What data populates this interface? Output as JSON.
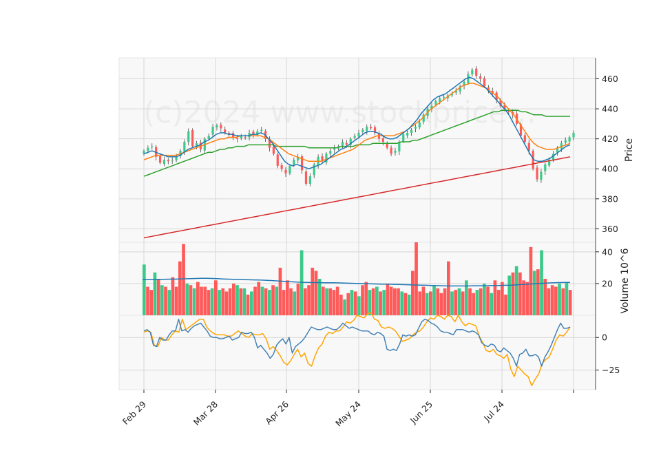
{
  "chart_data": {
    "type": "candlestick",
    "watermark": "(c)2024 www.stockprice...",
    "x_tick_labels": [
      "Feb 29",
      "Mar 28",
      "Apr 26",
      "May 24",
      "Jun 25",
      "Jul 24"
    ],
    "price_panel": {
      "ylabel": "Price",
      "yticks": [
        360,
        380,
        400,
        420,
        440,
        460
      ],
      "ylim": [
        351,
        474
      ],
      "ma_colors": {
        "ma_short": "#1f77b4",
        "ma_mid": "#ff7f0e",
        "ma_long": "#2ca02c",
        "ma_200": "#d62728"
      },
      "up_color": "#3cc98a",
      "down_color": "#ff5a5a",
      "candles_close": [
        412,
        414,
        415,
        408,
        404,
        406,
        405,
        406,
        408,
        412,
        418,
        425,
        415,
        417,
        413,
        420,
        422,
        428,
        429,
        427,
        424,
        423,
        421,
        420,
        422,
        421,
        424,
        423,
        425,
        426,
        420,
        414,
        410,
        402,
        400,
        397,
        402,
        406,
        408,
        399,
        390,
        395,
        403,
        408,
        405,
        410,
        412,
        414,
        415,
        418,
        416,
        420,
        422,
        424,
        426,
        428,
        427,
        424,
        420,
        418,
        414,
        410,
        412,
        418,
        423,
        424,
        426,
        428,
        431,
        436,
        440,
        442,
        445,
        447,
        448,
        449,
        450,
        452,
        455,
        458,
        463,
        466,
        462,
        460,
        455,
        452,
        450,
        446,
        442,
        440,
        438,
        436,
        430,
        422,
        418,
        412,
        400,
        393,
        398,
        403,
        406,
        410,
        414,
        417,
        419,
        421,
        424
      ],
      "ma_short": [
        410,
        411,
        412,
        411,
        410,
        409,
        408,
        408,
        408,
        409,
        411,
        413,
        414,
        415,
        416,
        418,
        419,
        421,
        423,
        424,
        424,
        423,
        423,
        422,
        422,
        422,
        422,
        423,
        423,
        424,
        423,
        420,
        417,
        413,
        409,
        405,
        403,
        402,
        403,
        402,
        401,
        400,
        401,
        402,
        403,
        405,
        407,
        409,
        411,
        413,
        414,
        416,
        418,
        420,
        422,
        424,
        425,
        425,
        424,
        423,
        421,
        420,
        420,
        421,
        423,
        425,
        427,
        430,
        433,
        437,
        440,
        443,
        446,
        448,
        449,
        450,
        452,
        454,
        456,
        458,
        460,
        461,
        460,
        458,
        456,
        454,
        451,
        448,
        445,
        442,
        439,
        435,
        430,
        425,
        420,
        415,
        410,
        406,
        405,
        405,
        406,
        407,
        409,
        411,
        413,
        415,
        416
      ],
      "ma_mid": [
        406,
        407,
        408,
        409,
        409,
        409,
        409,
        409,
        409,
        410,
        411,
        412,
        413,
        414,
        415,
        416,
        417,
        418,
        419,
        420,
        420,
        421,
        421,
        421,
        422,
        422,
        422,
        422,
        422,
        422,
        421,
        420,
        418,
        416,
        414,
        412,
        410,
        409,
        408,
        407,
        406,
        405,
        405,
        405,
        405,
        406,
        407,
        408,
        409,
        410,
        411,
        412,
        413,
        415,
        417,
        419,
        420,
        421,
        422,
        422,
        422,
        422,
        422,
        423,
        424,
        425,
        427,
        429,
        431,
        433,
        436,
        439,
        441,
        443,
        445,
        447,
        449,
        451,
        453,
        455,
        456,
        457,
        457,
        456,
        455,
        454,
        452,
        450,
        448,
        445,
        442,
        439,
        436,
        432,
        428,
        424,
        420,
        417,
        415,
        414,
        413,
        413,
        413,
        414,
        415,
        416,
        417
      ],
      "ma_long": [
        395,
        396,
        397,
        398,
        399,
        400,
        401,
        402,
        403,
        404,
        405,
        406,
        407,
        408,
        409,
        410,
        411,
        411,
        412,
        413,
        413,
        414,
        414,
        415,
        415,
        415,
        416,
        416,
        416,
        416,
        416,
        416,
        416,
        415,
        415,
        415,
        415,
        415,
        415,
        415,
        415,
        414,
        414,
        414,
        414,
        414,
        414,
        414,
        414,
        415,
        415,
        415,
        415,
        416,
        416,
        416,
        416,
        417,
        417,
        417,
        417,
        417,
        417,
        417,
        418,
        418,
        418,
        419,
        419,
        420,
        421,
        422,
        423,
        424,
        425,
        426,
        427,
        428,
        429,
        430,
        431,
        432,
        433,
        434,
        435,
        436,
        437,
        438,
        438,
        439,
        439,
        439,
        439,
        439,
        438,
        438,
        437,
        436,
        436,
        436,
        435,
        435,
        435,
        435,
        435,
        435,
        435
      ],
      "ma_200": [
        354,
        355,
        356,
        357,
        358,
        359,
        360,
        361,
        362,
        363,
        364,
        365,
        366,
        367,
        368,
        369,
        370,
        371,
        372,
        373,
        374,
        375,
        376,
        377,
        378,
        379,
        380,
        381,
        382,
        383,
        384,
        385,
        386,
        387,
        388,
        389,
        390,
        391,
        392,
        393,
        394,
        395,
        396,
        397,
        398,
        399,
        400,
        401,
        402,
        403,
        404,
        405,
        406,
        407,
        408
      ]
    },
    "volume_panel": {
      "ylabel": "Volume  10^6",
      "yticks": [
        20,
        40
      ],
      "ylim": [
        0,
        46
      ],
      "values": [
        32,
        18,
        16,
        27,
        23,
        19,
        18,
        16,
        24,
        18,
        34,
        45,
        20,
        19,
        17,
        21,
        18,
        18,
        16,
        17,
        22,
        16,
        17,
        15,
        17,
        20,
        19,
        17,
        17,
        13,
        15,
        18,
        21,
        18,
        17,
        16,
        19,
        18,
        30,
        16,
        22,
        17,
        15,
        20,
        41,
        17,
        19,
        30,
        28,
        23,
        18,
        17,
        17,
        16,
        18,
        13,
        10,
        14,
        16,
        15,
        12,
        19,
        21,
        16,
        17,
        18,
        15,
        16,
        20,
        18,
        17,
        17,
        15,
        14,
        13,
        28,
        46,
        15,
        18,
        14,
        15,
        19,
        17,
        14,
        17,
        34,
        15,
        16,
        17,
        15,
        22,
        17,
        14,
        16,
        17,
        20,
        18,
        14,
        22,
        16,
        21,
        13,
        25,
        27,
        31,
        27,
        22,
        21,
        43,
        28,
        29,
        41,
        23,
        17,
        19,
        18,
        20,
        17,
        21,
        16
      ],
      "ma_values": [
        22.5,
        22.5,
        22.5,
        22.6,
        22.7,
        22.8,
        22.8,
        22.9,
        23.0,
        23.1,
        23.2,
        23.3,
        23.3,
        23.2,
        23.1,
        22.9,
        22.8,
        22.7,
        22.6,
        22.5,
        22.4,
        22.3,
        22.2,
        22.1,
        21.9,
        21.7,
        21.5,
        21.3,
        21.1,
        20.9,
        20.8,
        20.7,
        20.6,
        20.6,
        20.5,
        20.5,
        20.5,
        20.4,
        20.3,
        20.2,
        20.1,
        20.0,
        19.9,
        19.8,
        19.7,
        19.6,
        19.6,
        19.5,
        19.4,
        19.3,
        19.2,
        19.1,
        19.0,
        18.9,
        18.8,
        18.7,
        18.6,
        18.5,
        18.5,
        18.5,
        18.5,
        18.5,
        18.6,
        18.6,
        18.6,
        18.7,
        18.7,
        18.8,
        18.9,
        19.0,
        19.2,
        19.4,
        19.6,
        19.8,
        20.0,
        20.2,
        20.4,
        20.5,
        20.6,
        20.7,
        20.7
      ]
    },
    "oscillator_panel": {
      "yticks": [
        -25,
        0
      ],
      "ylim": [
        -40,
        17
      ],
      "line_colors": [
        "#4682b4",
        "#ffa500"
      ],
      "line1": [
        5,
        6,
        4,
        -6,
        -7,
        0,
        -2,
        -2,
        2,
        5,
        5,
        14,
        5,
        6,
        4,
        7,
        9,
        10,
        11,
        8,
        5,
        1,
        0,
        0,
        -1,
        -1,
        0,
        1,
        -2,
        -1,
        0,
        4,
        3,
        3,
        4,
        0,
        -8,
        -6,
        -9,
        -12,
        -16,
        -13,
        -6,
        -3,
        -1,
        -5,
        0,
        -12,
        -7,
        -5,
        -3,
        0,
        4,
        8,
        7,
        6,
        6,
        7,
        8,
        7,
        6,
        6,
        8,
        11,
        9,
        7,
        8,
        7,
        6,
        5,
        5,
        5,
        3,
        2,
        4,
        3,
        1,
        -9,
        -10,
        -9,
        -10,
        -5,
        2,
        1,
        2,
        1,
        2,
        7,
        12,
        14,
        13,
        11,
        10,
        8,
        5,
        4,
        4,
        3,
        2,
        6,
        6,
        6,
        5,
        4,
        5,
        4,
        2,
        -4,
        -6,
        -7,
        -5,
        -6,
        -10,
        -11,
        -8,
        -10,
        -12,
        -16,
        -22,
        -13,
        -12,
        -9,
        -14,
        -14,
        -13,
        -15,
        -22,
        -15,
        -11,
        -6,
        0,
        6,
        11,
        7,
        7,
        8
      ],
      "line2": [
        4,
        5,
        4,
        -6,
        -7,
        0,
        -2,
        -2,
        2,
        5,
        4,
        14,
        6,
        8,
        10,
        12,
        14,
        14,
        8,
        5,
        3,
        2,
        2,
        2,
        1,
        1,
        3,
        5,
        3,
        1,
        0,
        3,
        2,
        2,
        3,
        -1,
        -9,
        -7,
        -10,
        -14,
        -19,
        -21,
        -18,
        -13,
        -9,
        -15,
        -12,
        -20,
        -22,
        -14,
        -8,
        -5,
        1,
        4,
        3,
        5,
        5,
        8,
        12,
        11,
        13,
        17,
        16,
        15,
        18,
        19,
        14,
        13,
        8,
        7,
        8,
        7,
        5,
        1,
        -3,
        -2,
        -1,
        2,
        4,
        5,
        8,
        12,
        15,
        14,
        17,
        16,
        14,
        17,
        16,
        12,
        17,
        12,
        9,
        11,
        10,
        9,
        1,
        -4,
        -10,
        -11,
        -9,
        -13,
        -14,
        -16,
        -13,
        -24,
        -30,
        -22,
        -25,
        -28,
        -30,
        -37,
        -32,
        -28,
        -20,
        -17,
        -15,
        -9,
        -2,
        2,
        1,
        4,
        8
      ]
    }
  }
}
